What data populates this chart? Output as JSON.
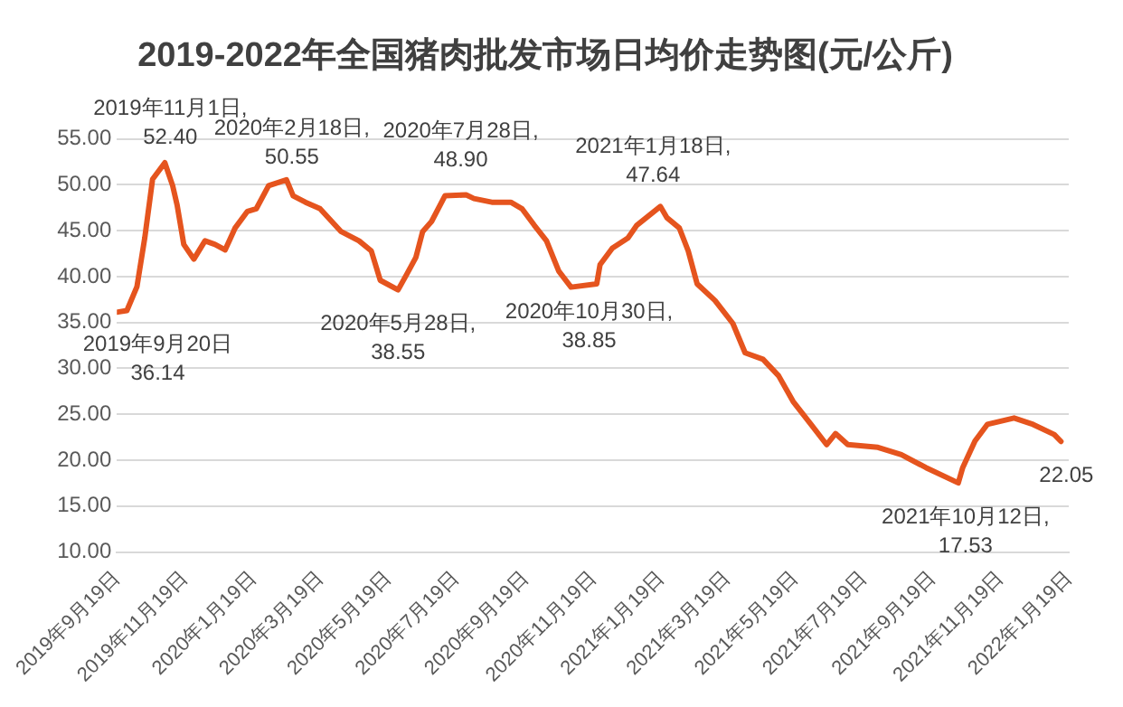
{
  "chart_data": {
    "type": "line",
    "title": "2019-2022年全国猪肉批发市场日均价走势图(元/公斤)",
    "x": [
      "2019-09-20",
      "2019-09-28",
      "2019-10-07",
      "2019-10-14",
      "2019-10-21",
      "2019-11-01",
      "2019-11-08",
      "2019-11-12",
      "2019-11-18",
      "2019-11-27",
      "2019-12-07",
      "2019-12-16",
      "2019-12-25",
      "2020-01-03",
      "2020-01-14",
      "2020-01-22",
      "2020-02-02",
      "2020-02-18",
      "2020-02-24",
      "2020-03-06",
      "2020-03-19",
      "2020-04-07",
      "2020-04-23",
      "2020-05-04",
      "2020-05-12",
      "2020-05-28",
      "2020-06-05",
      "2020-06-13",
      "2020-06-19",
      "2020-06-27",
      "2020-07-09",
      "2020-07-28",
      "2020-08-04",
      "2020-08-20",
      "2020-09-06",
      "2020-09-16",
      "2020-09-27",
      "2020-10-08",
      "2020-10-19",
      "2020-10-30",
      "2020-11-22",
      "2020-11-25",
      "2020-12-06",
      "2020-12-20",
      "2020-12-28",
      "2021-01-18",
      "2021-01-24",
      "2021-02-04",
      "2021-02-12",
      "2021-02-20",
      "2021-03-08",
      "2021-03-24",
      "2021-04-04",
      "2021-04-20",
      "2021-05-04",
      "2021-05-17",
      "2021-06-02",
      "2021-06-16",
      "2021-06-24",
      "2021-07-05",
      "2021-08-01",
      "2021-08-22",
      "2021-09-13",
      "2021-10-12",
      "2021-10-16",
      "2021-10-27",
      "2021-11-07",
      "2021-12-01",
      "2021-12-18",
      "2022-01-06",
      "2022-01-12"
    ],
    "series": [
      {
        "color": "#e5541e",
        "values": [
          36.14,
          36.3,
          38.9,
          44.2,
          50.6,
          52.4,
          49.9,
          47.8,
          43.5,
          41.9,
          43.9,
          43.5,
          42.9,
          45.3,
          47.1,
          47.4,
          49.9,
          50.55,
          48.8,
          48.1,
          47.4,
          44.9,
          43.9,
          42.8,
          39.6,
          38.55,
          40.3,
          42.1,
          44.9,
          46.0,
          48.8,
          48.9,
          48.5,
          48.1,
          48.1,
          47.4,
          45.6,
          43.9,
          40.6,
          38.85,
          39.2,
          41.3,
          43.1,
          44.2,
          45.6,
          47.64,
          46.4,
          45.3,
          42.8,
          39.2,
          37.4,
          34.9,
          31.7,
          31.0,
          29.2,
          26.4,
          23.9,
          21.7,
          22.9,
          21.7,
          21.4,
          20.6,
          19.2,
          17.53,
          19.2,
          22.1,
          23.9,
          24.6,
          23.9,
          22.8,
          22.05
        ]
      }
    ],
    "xlim": [
      "2019-09-19",
      "2022-01-19"
    ],
    "xticks": [
      {
        "value": "2019-09-19",
        "label": "2019年9月19日"
      },
      {
        "value": "2019-11-19",
        "label": "2019年11月19日"
      },
      {
        "value": "2020-01-19",
        "label": "2020年1月19日"
      },
      {
        "value": "2020-03-19",
        "label": "2020年3月19日"
      },
      {
        "value": "2020-05-19",
        "label": "2020年5月19日"
      },
      {
        "value": "2020-07-19",
        "label": "2020年7月19日"
      },
      {
        "value": "2020-09-19",
        "label": "2020年9月19日"
      },
      {
        "value": "2020-11-19",
        "label": "2020年11月19日"
      },
      {
        "value": "2021-01-19",
        "label": "2021年1月19日"
      },
      {
        "value": "2021-03-19",
        "label": "2021年3月19日"
      },
      {
        "value": "2021-05-19",
        "label": "2021年5月19日"
      },
      {
        "value": "2021-07-19",
        "label": "2021年7月19日"
      },
      {
        "value": "2021-09-19",
        "label": "2021年9月19日"
      },
      {
        "value": "2021-11-19",
        "label": "2021年11月19日"
      },
      {
        "value": "2022-01-19",
        "label": "2022年1月19日"
      }
    ],
    "ylim": [
      10,
      55
    ],
    "yticks": [
      {
        "value": 10,
        "label": "10.00"
      },
      {
        "value": 15,
        "label": "15.00"
      },
      {
        "value": 20,
        "label": "20.00"
      },
      {
        "value": 25,
        "label": "25.00"
      },
      {
        "value": 30,
        "label": "30.00"
      },
      {
        "value": 35,
        "label": "35.00"
      },
      {
        "value": 40,
        "label": "40.00"
      },
      {
        "value": 45,
        "label": "45.00"
      },
      {
        "value": 50,
        "label": "50.00"
      },
      {
        "value": 55,
        "label": "55.00"
      }
    ],
    "grid": "y",
    "legend": false,
    "marker": "none",
    "line_style": "solid",
    "annotations": [
      {
        "text": "2019年9月20日\n36.14",
        "x": "2019-09-20",
        "y": 36.14
      },
      {
        "text": "2019年11月1日,\n52.40",
        "x": "2019-11-01",
        "y": 52.4
      },
      {
        "text": "2020年2月18日,\n50.55",
        "x": "2020-02-18",
        "y": 50.55
      },
      {
        "text": "2020年5月28日,\n38.55",
        "x": "2020-05-28",
        "y": 38.55
      },
      {
        "text": "2020年7月28日,\n48.90",
        "x": "2020-07-28",
        "y": 48.9
      },
      {
        "text": "2020年10月30日,\n38.85",
        "x": "2020-10-30",
        "y": 38.85
      },
      {
        "text": "2021年1月18日,\n47.64",
        "x": "2021-01-18",
        "y": 47.64
      },
      {
        "text": "2021年10月12日,\n17.53",
        "x": "2021-10-12",
        "y": 17.53
      },
      {
        "text": "22.05",
        "x": "2022-01-12",
        "y": 22.05
      }
    ]
  }
}
